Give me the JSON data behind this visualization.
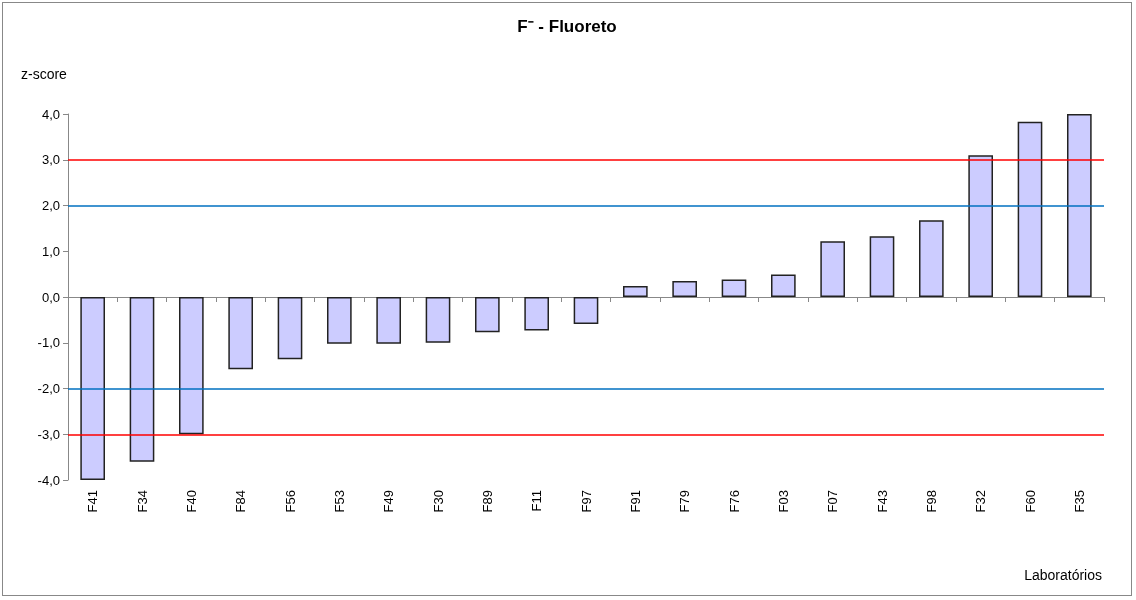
{
  "chart_data": {
    "type": "bar",
    "title": "F⁻ - Fluoreto",
    "xlabel": "Laboratórios",
    "ylabel": "z-score",
    "categories": [
      "F41",
      "F34",
      "F40",
      "F84",
      "F56",
      "F53",
      "F49",
      "F30",
      "F89",
      "F11",
      "F97",
      "F91",
      "F79",
      "F76",
      "F03",
      "F07",
      "F43",
      "F98",
      "F32",
      "F60",
      "F35"
    ],
    "values": [
      -4.0,
      -3.6,
      -3.0,
      -1.58,
      -1.36,
      -1.02,
      -1.02,
      -1.0,
      -0.77,
      -0.73,
      -0.59,
      0.24,
      0.35,
      0.38,
      0.49,
      1.22,
      1.33,
      1.68,
      3.1,
      3.83,
      4.0
    ],
    "color": "#ccccff",
    "ylim": [
      -4,
      4
    ],
    "yticks": [
      {
        "value": -4,
        "label": "-4,0"
      },
      {
        "value": -3,
        "label": "-3,0"
      },
      {
        "value": -2,
        "label": "-2,0"
      },
      {
        "value": -1,
        "label": "-1,0"
      },
      {
        "value": 0,
        "label": "0,0"
      },
      {
        "value": 1,
        "label": "1,0"
      },
      {
        "value": 2,
        "label": "2,0"
      },
      {
        "value": 3,
        "label": "3,0"
      },
      {
        "value": 4,
        "label": "4,0"
      }
    ],
    "ref_lines": [
      {
        "axis": "y",
        "value": 3,
        "color": "#ff0000"
      },
      {
        "axis": "y",
        "value": 2,
        "color": "#0070c0"
      },
      {
        "axis": "y",
        "value": -2,
        "color": "#0070c0"
      },
      {
        "axis": "y",
        "value": -3,
        "color": "#ff0000"
      }
    ],
    "grid": false
  }
}
